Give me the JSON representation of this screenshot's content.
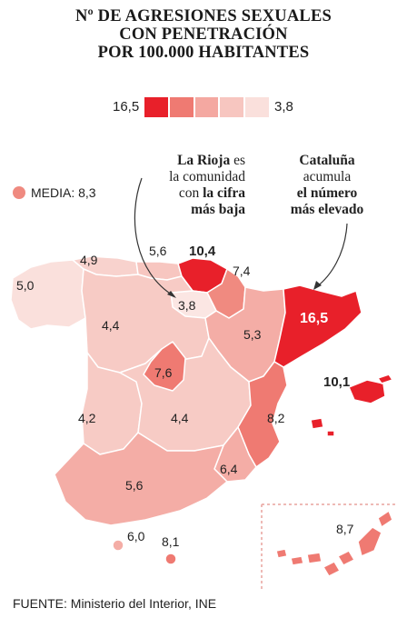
{
  "title": {
    "line1": "Nº DE AGRESIONES SEXUALES",
    "line2": "CON PENETRACIÓN",
    "line3": "POR 100.000 HABITANTES"
  },
  "legend": {
    "max_label": "16,5",
    "min_label": "3,8",
    "colors": [
      "#e8202a",
      "#ef7a72",
      "#f4a8a1",
      "#f7c6c0",
      "#fae0dc"
    ]
  },
  "media": {
    "label": "MEDIA: 8,3",
    "color": "#ef8a80"
  },
  "notes": {
    "rioja": {
      "line1_bold": "La Rioja",
      "line1_rest": " es",
      "line2": "la comunidad",
      "line3_pre": "con ",
      "line3_bold": "la cifra",
      "line4_bold": "más baja"
    },
    "cataluna": {
      "line1_bold": "Cataluña",
      "line2": "acumula",
      "line3_bold": "el número",
      "line4_bold": "más elevado"
    }
  },
  "regions": {
    "galicia": {
      "value": "5,0",
      "color": "#fae0dc"
    },
    "asturias": {
      "value": "4,9",
      "color": "#f8d2cd"
    },
    "cantabria": {
      "value": "5,6",
      "color": "#f7c6c0"
    },
    "pais_vasco": {
      "value": "10,4",
      "color": "#e8202a"
    },
    "navarra": {
      "value": "7,4",
      "color": "#f08a80"
    },
    "la_rioja": {
      "value": "3,8",
      "color": "#fbe6e3"
    },
    "cataluna": {
      "value": "16,5",
      "color": "#e8202a"
    },
    "castilla_leon": {
      "value": "4,4",
      "color": "#f7cbc5"
    },
    "aragon": {
      "value": "5,3",
      "color": "#f4ada6"
    },
    "madrid": {
      "value": "7,6",
      "color": "#ef7a72"
    },
    "extremadura": {
      "value": "4,2",
      "color": "#f7cbc5"
    },
    "castilla_la_mancha": {
      "value": "4,4",
      "color": "#f7cbc5"
    },
    "valencia": {
      "value": "8,2",
      "color": "#ef7a72"
    },
    "baleares": {
      "value": "10,1",
      "color": "#e8202a"
    },
    "murcia": {
      "value": "6,4",
      "color": "#f4ada6"
    },
    "andalucia": {
      "value": "5,6",
      "color": "#f4ada6"
    },
    "ceuta": {
      "value": "6,0",
      "color": "#f4ada6"
    },
    "melilla": {
      "value": "8,1",
      "color": "#ef7a72"
    },
    "canarias": {
      "value": "8,7",
      "color": "#ef7a72"
    }
  },
  "source": "FUENTE: Ministerio del Interior, INE"
}
